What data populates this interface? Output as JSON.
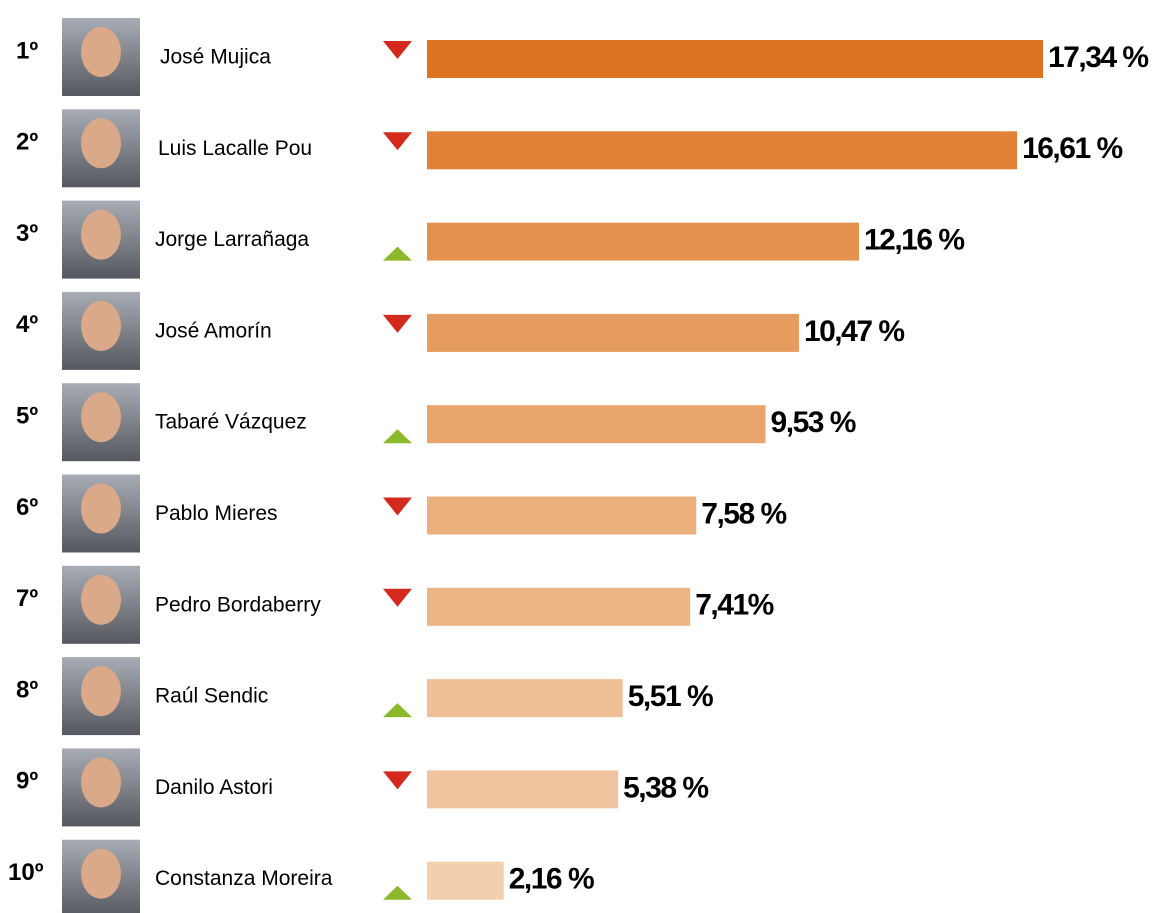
{
  "chart_data": {
    "type": "bar",
    "orientation": "horizontal",
    "ranks": [
      "1º",
      "2º",
      "3º",
      "4º",
      "5º",
      "6º",
      "7º",
      "8º",
      "9º",
      "10º"
    ],
    "categories": [
      "José Mujica",
      "Luis Lacalle Pou",
      "Jorge Larrañaga",
      "José Amorín",
      "Tabaré Vázquez",
      "Pablo Mieres",
      "Pedro Bordaberry",
      "Raúl Sendic",
      "Danilo Astori",
      "Constanza Moreira"
    ],
    "values": [
      17.34,
      16.61,
      12.16,
      10.47,
      9.53,
      7.58,
      7.41,
      5.51,
      5.38,
      2.16
    ],
    "value_labels": [
      "17,34 %",
      "16,61 %",
      "12,16 %",
      "10,47 %",
      "9,53 %",
      "7,58 %",
      "7,41%",
      "5,51 %",
      "5,38 %",
      "2,16 %"
    ],
    "trend": [
      "down",
      "down",
      "up",
      "down",
      "up",
      "down",
      "down",
      "up",
      "down",
      "up"
    ],
    "trend_colors": {
      "down": "#d42a1e",
      "up": "#8cb82c"
    },
    "colors": [
      "#dc7322",
      "#e08238",
      "#e4924e",
      "#e69c5e",
      "#e8a56c",
      "#ebb07e",
      "#ecb586",
      "#efbf96",
      "#f0c49e",
      "#f3cfae"
    ]
  }
}
